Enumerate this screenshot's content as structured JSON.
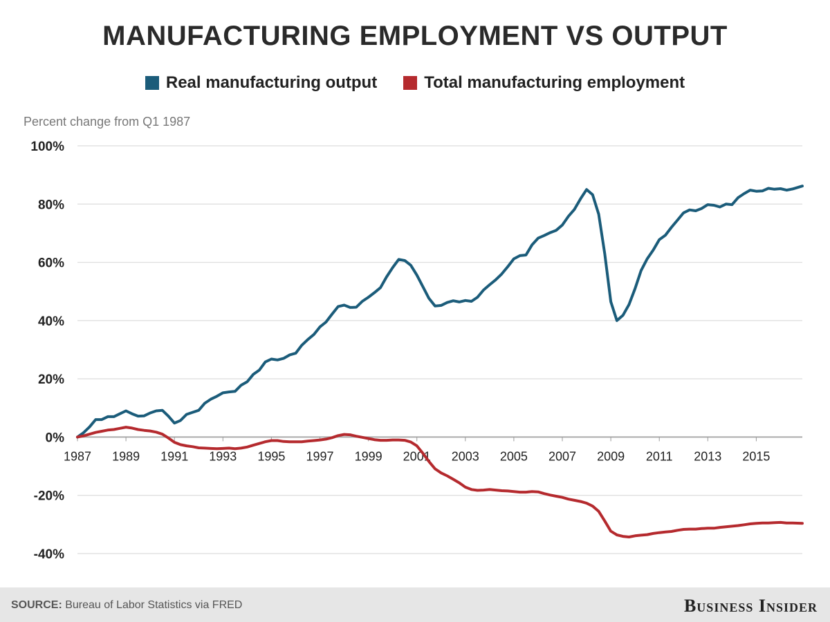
{
  "title": "MANUFACTURING EMPLOYMENT VS OUTPUT",
  "subtitle": "Percent change from Q1 1987",
  "source_label": "SOURCE:",
  "source_text": "Bureau of Labor Statistics via FRED",
  "brand": "Business Insider",
  "colors": {
    "output": "#1b5c7a",
    "employment": "#b52a2e",
    "grid": "#dcdcdc",
    "zero": "#aaaaaa"
  },
  "chart_data": {
    "type": "line",
    "ylabel": "Percent change from Q1 1987",
    "ylim": [
      -40,
      100
    ],
    "xlim": [
      1987,
      2016.9
    ],
    "grid": true,
    "legend_position": "top-center",
    "y_ticks": [
      "100%",
      "80%",
      "60%",
      "40%",
      "20%",
      "0%",
      "-20%",
      "-40%"
    ],
    "y_tick_values": [
      100,
      80,
      60,
      40,
      20,
      0,
      -20,
      -40
    ],
    "x_ticks": [
      "1987",
      "1989",
      "1991",
      "1993",
      "1995",
      "1997",
      "1999",
      "2001",
      "2003",
      "2005",
      "2007",
      "2009",
      "2011",
      "2013",
      "2015"
    ],
    "x_tick_values": [
      1987,
      1989,
      1991,
      1993,
      1995,
      1997,
      1999,
      2001,
      2003,
      2005,
      2007,
      2009,
      2011,
      2013,
      2015
    ],
    "series": [
      {
        "name": "Real manufacturing output",
        "points": [
          [
            1987,
            0
          ],
          [
            1987.25,
            1.5
          ],
          [
            1987.5,
            3.5
          ],
          [
            1987.75,
            6
          ],
          [
            1988,
            6
          ],
          [
            1988.25,
            7
          ],
          [
            1988.5,
            7
          ],
          [
            1988.75,
            8
          ],
          [
            1989,
            9
          ],
          [
            1989.25,
            8
          ],
          [
            1989.5,
            7.2
          ],
          [
            1989.75,
            7.3
          ],
          [
            1990,
            8.3
          ],
          [
            1990.25,
            9
          ],
          [
            1990.5,
            9.2
          ],
          [
            1990.75,
            7.2
          ],
          [
            1991,
            4.8
          ],
          [
            1991.25,
            5.7
          ],
          [
            1991.5,
            7.8
          ],
          [
            1991.75,
            8.5
          ],
          [
            1992,
            9.2
          ],
          [
            1992.25,
            11.6
          ],
          [
            1992.5,
            13
          ],
          [
            1992.75,
            14
          ],
          [
            1993,
            15.2
          ],
          [
            1993.25,
            15.5
          ],
          [
            1993.5,
            15.7
          ],
          [
            1993.75,
            17.8
          ],
          [
            1994,
            19
          ],
          [
            1994.25,
            21.5
          ],
          [
            1994.5,
            23
          ],
          [
            1994.75,
            25.8
          ],
          [
            1995,
            26.8
          ],
          [
            1995.25,
            26.5
          ],
          [
            1995.5,
            27
          ],
          [
            1995.75,
            28.2
          ],
          [
            1996,
            28.8
          ],
          [
            1996.25,
            31.5
          ],
          [
            1996.5,
            33.5
          ],
          [
            1996.75,
            35.2
          ],
          [
            1997,
            37.8
          ],
          [
            1997.25,
            39.5
          ],
          [
            1997.5,
            42.2
          ],
          [
            1997.75,
            44.8
          ],
          [
            1998,
            45.3
          ],
          [
            1998.25,
            44.5
          ],
          [
            1998.5,
            44.6
          ],
          [
            1998.75,
            46.6
          ],
          [
            1999,
            48
          ],
          [
            1999.25,
            49.6
          ],
          [
            1999.5,
            51.3
          ],
          [
            1999.75,
            55
          ],
          [
            2000,
            58.2
          ],
          [
            2000.25,
            61
          ],
          [
            2000.5,
            60.6
          ],
          [
            2000.75,
            59
          ],
          [
            2001,
            55.6
          ],
          [
            2001.25,
            51.6
          ],
          [
            2001.5,
            47.6
          ],
          [
            2001.75,
            45
          ],
          [
            2002,
            45.2
          ],
          [
            2002.25,
            46.2
          ],
          [
            2002.5,
            46.8
          ],
          [
            2002.75,
            46.4
          ],
          [
            2003,
            46.9
          ],
          [
            2003.25,
            46.6
          ],
          [
            2003.5,
            48
          ],
          [
            2003.75,
            50.5
          ],
          [
            2004,
            52.3
          ],
          [
            2004.25,
            54
          ],
          [
            2004.5,
            56
          ],
          [
            2004.75,
            58.5
          ],
          [
            2005,
            61.2
          ],
          [
            2005.25,
            62.3
          ],
          [
            2005.5,
            62.5
          ],
          [
            2005.75,
            66
          ],
          [
            2006,
            68.3
          ],
          [
            2006.25,
            69.2
          ],
          [
            2006.5,
            70.2
          ],
          [
            2006.75,
            71
          ],
          [
            2007,
            72.8
          ],
          [
            2007.25,
            75.8
          ],
          [
            2007.5,
            78.2
          ],
          [
            2007.75,
            81.8
          ],
          [
            2008,
            85
          ],
          [
            2008.25,
            83.2
          ],
          [
            2008.5,
            76.5
          ],
          [
            2008.75,
            63
          ],
          [
            2009,
            46.5
          ],
          [
            2009.25,
            40
          ],
          [
            2009.5,
            41.8
          ],
          [
            2009.75,
            45.5
          ],
          [
            2010,
            51
          ],
          [
            2010.25,
            57.2
          ],
          [
            2010.5,
            61.2
          ],
          [
            2010.75,
            64.2
          ],
          [
            2011,
            67.8
          ],
          [
            2011.25,
            69.3
          ],
          [
            2011.5,
            72
          ],
          [
            2011.75,
            74.5
          ],
          [
            2012,
            77
          ],
          [
            2012.25,
            78
          ],
          [
            2012.5,
            77.7
          ],
          [
            2012.75,
            78.5
          ],
          [
            2013,
            79.8
          ],
          [
            2013.25,
            79.6
          ],
          [
            2013.5,
            79
          ],
          [
            2013.75,
            80
          ],
          [
            2014,
            79.8
          ],
          [
            2014.25,
            82.2
          ],
          [
            2014.5,
            83.6
          ],
          [
            2014.75,
            84.8
          ],
          [
            2015,
            84.4
          ],
          [
            2015.25,
            84.5
          ],
          [
            2015.5,
            85.4
          ],
          [
            2015.75,
            85.1
          ],
          [
            2016,
            85.3
          ],
          [
            2016.25,
            84.8
          ],
          [
            2016.5,
            85.2
          ],
          [
            2016.9,
            86.2
          ]
        ]
      },
      {
        "name": "Total manufacturing employment",
        "points": [
          [
            1987,
            0
          ],
          [
            1987.25,
            0.4
          ],
          [
            1987.5,
            1
          ],
          [
            1987.75,
            1.6
          ],
          [
            1988,
            2
          ],
          [
            1988.25,
            2.4
          ],
          [
            1988.5,
            2.6
          ],
          [
            1988.75,
            3
          ],
          [
            1989,
            3.4
          ],
          [
            1989.25,
            3.1
          ],
          [
            1989.5,
            2.6
          ],
          [
            1989.75,
            2.3
          ],
          [
            1990,
            2.1
          ],
          [
            1990.25,
            1.7
          ],
          [
            1990.5,
            1
          ],
          [
            1990.75,
            -0.3
          ],
          [
            1991,
            -1.8
          ],
          [
            1991.25,
            -2.6
          ],
          [
            1991.5,
            -3
          ],
          [
            1991.75,
            -3.3
          ],
          [
            1992,
            -3.7
          ],
          [
            1992.25,
            -3.8
          ],
          [
            1992.5,
            -3.9
          ],
          [
            1992.75,
            -4
          ],
          [
            1993,
            -3.9
          ],
          [
            1993.25,
            -3.8
          ],
          [
            1993.5,
            -4
          ],
          [
            1993.75,
            -3.8
          ],
          [
            1994,
            -3.4
          ],
          [
            1994.25,
            -2.8
          ],
          [
            1994.5,
            -2.2
          ],
          [
            1994.75,
            -1.6
          ],
          [
            1995,
            -1.2
          ],
          [
            1995.25,
            -1.2
          ],
          [
            1995.5,
            -1.5
          ],
          [
            1995.75,
            -1.6
          ],
          [
            1996,
            -1.6
          ],
          [
            1996.25,
            -1.6
          ],
          [
            1996.5,
            -1.4
          ],
          [
            1996.75,
            -1.2
          ],
          [
            1997,
            -1
          ],
          [
            1997.25,
            -0.7
          ],
          [
            1997.5,
            -0.2
          ],
          [
            1997.75,
            0.5
          ],
          [
            1998,
            0.9
          ],
          [
            1998.25,
            0.8
          ],
          [
            1998.5,
            0.3
          ],
          [
            1998.75,
            -0.1
          ],
          [
            1999,
            -0.5
          ],
          [
            1999.25,
            -0.9
          ],
          [
            1999.5,
            -1.1
          ],
          [
            1999.75,
            -1.1
          ],
          [
            2000,
            -1
          ],
          [
            2000.25,
            -1
          ],
          [
            2000.5,
            -1.1
          ],
          [
            2000.75,
            -1.7
          ],
          [
            2001,
            -3
          ],
          [
            2001.25,
            -5.6
          ],
          [
            2001.5,
            -8.4
          ],
          [
            2001.75,
            -10.9
          ],
          [
            2002,
            -12.3
          ],
          [
            2002.25,
            -13.3
          ],
          [
            2002.5,
            -14.5
          ],
          [
            2002.75,
            -15.7
          ],
          [
            2003,
            -17.2
          ],
          [
            2003.25,
            -18
          ],
          [
            2003.5,
            -18.3
          ],
          [
            2003.75,
            -18.2
          ],
          [
            2004,
            -18
          ],
          [
            2004.25,
            -18.2
          ],
          [
            2004.5,
            -18.4
          ],
          [
            2004.75,
            -18.5
          ],
          [
            2005,
            -18.7
          ],
          [
            2005.25,
            -18.9
          ],
          [
            2005.5,
            -18.9
          ],
          [
            2005.75,
            -18.7
          ],
          [
            2006,
            -18.8
          ],
          [
            2006.25,
            -19.4
          ],
          [
            2006.5,
            -19.9
          ],
          [
            2006.75,
            -20.3
          ],
          [
            2007,
            -20.7
          ],
          [
            2007.25,
            -21.3
          ],
          [
            2007.5,
            -21.7
          ],
          [
            2007.75,
            -22.1
          ],
          [
            2008,
            -22.7
          ],
          [
            2008.25,
            -23.7
          ],
          [
            2008.5,
            -25.5
          ],
          [
            2008.75,
            -28.8
          ],
          [
            2009,
            -32.3
          ],
          [
            2009.25,
            -33.6
          ],
          [
            2009.5,
            -34.1
          ],
          [
            2009.75,
            -34.3
          ],
          [
            2010,
            -33.9
          ],
          [
            2010.25,
            -33.7
          ],
          [
            2010.5,
            -33.5
          ],
          [
            2010.75,
            -33.1
          ],
          [
            2011,
            -32.8
          ],
          [
            2011.25,
            -32.6
          ],
          [
            2011.5,
            -32.4
          ],
          [
            2011.75,
            -32
          ],
          [
            2012,
            -31.7
          ],
          [
            2012.25,
            -31.6
          ],
          [
            2012.5,
            -31.6
          ],
          [
            2012.75,
            -31.4
          ],
          [
            2013,
            -31.3
          ],
          [
            2013.25,
            -31.3
          ],
          [
            2013.5,
            -31
          ],
          [
            2013.75,
            -30.8
          ],
          [
            2014,
            -30.6
          ],
          [
            2014.25,
            -30.4
          ],
          [
            2014.5,
            -30.1
          ],
          [
            2014.75,
            -29.8
          ],
          [
            2015,
            -29.6
          ],
          [
            2015.25,
            -29.5
          ],
          [
            2015.5,
            -29.5
          ],
          [
            2015.75,
            -29.4
          ],
          [
            2016,
            -29.3
          ],
          [
            2016.25,
            -29.5
          ],
          [
            2016.5,
            -29.5
          ],
          [
            2016.9,
            -29.6
          ]
        ]
      }
    ]
  }
}
